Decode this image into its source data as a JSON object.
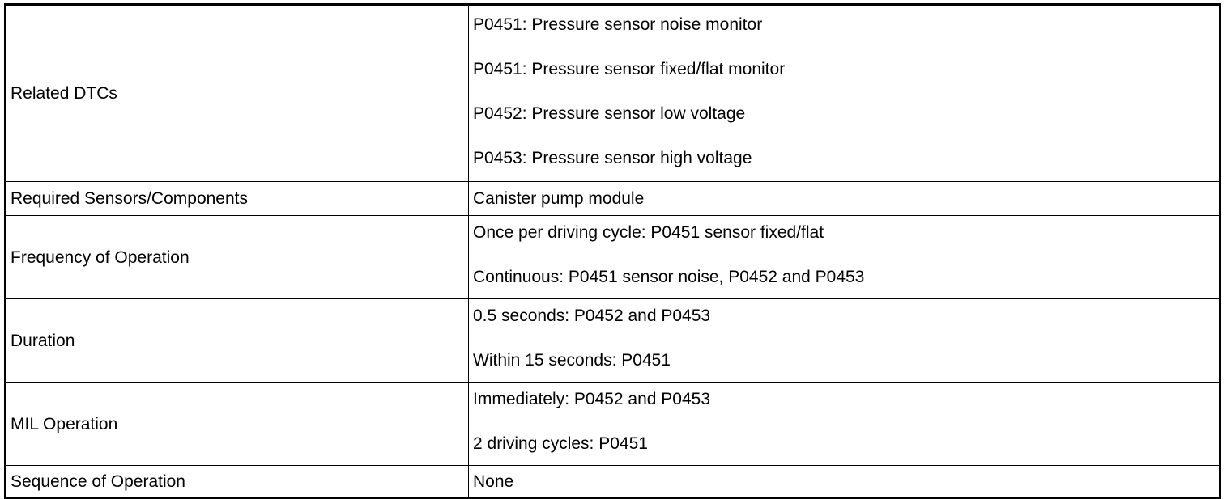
{
  "rows": [
    {
      "label": "Related DTCs",
      "values": [
        "P0451: Pressure sensor noise monitor",
        "P0451: Pressure sensor fixed/flat monitor",
        "P0452: Pressure sensor low voltage",
        "P0453: Pressure sensor high voltage"
      ]
    },
    {
      "label": "Required Sensors/Components",
      "values": [
        "Canister pump module"
      ]
    },
    {
      "label": "Frequency of Operation",
      "values": [
        "Once per driving cycle: P0451 sensor fixed/flat",
        "Continuous: P0451 sensor noise, P0452 and P0453"
      ]
    },
    {
      "label": "Duration",
      "values": [
        "0.5 seconds: P0452 and P0453",
        "Within 15 seconds: P0451"
      ]
    },
    {
      "label": "MIL Operation",
      "values": [
        "Immediately: P0452 and P0453",
        "2 driving cycles: P0451"
      ]
    },
    {
      "label": "Sequence of Operation",
      "values": [
        "None"
      ]
    }
  ]
}
